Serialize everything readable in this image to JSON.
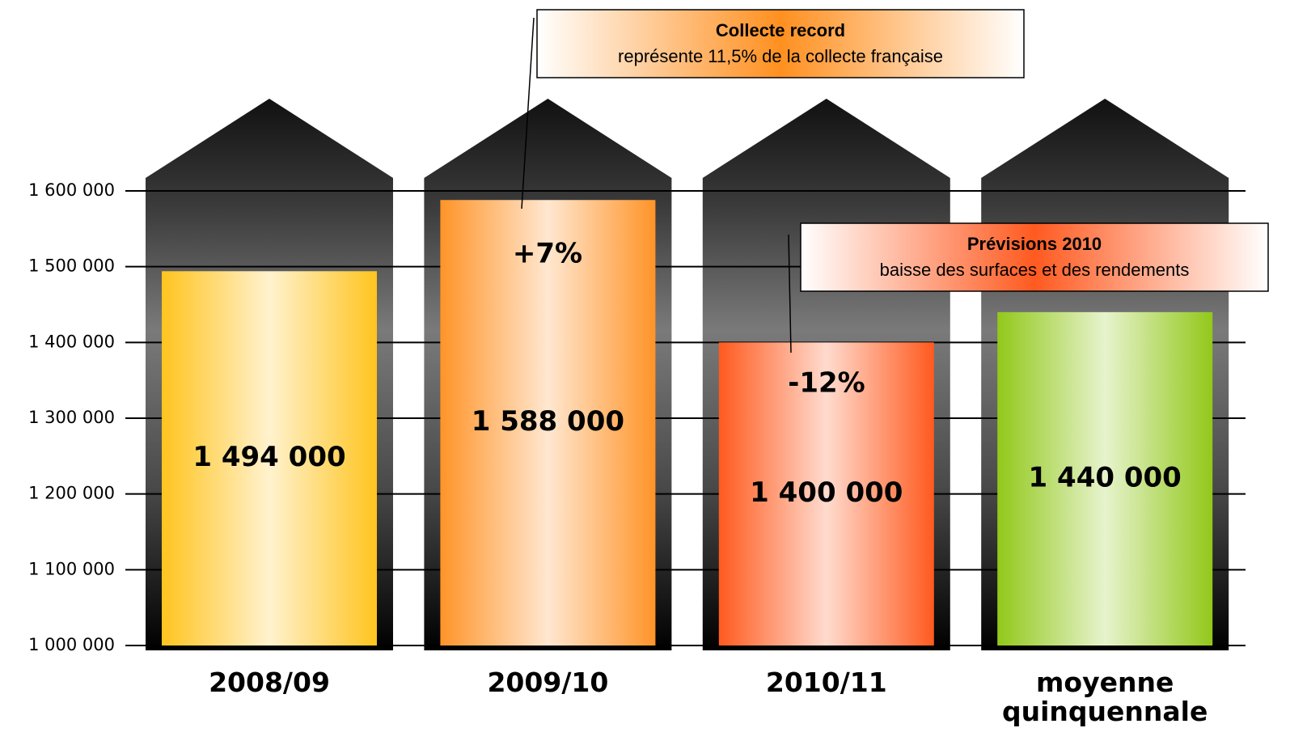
{
  "chart_data": {
    "type": "bar",
    "categories": [
      "2008/09",
      "2009/10",
      "2010/11",
      "moyenne quinquennale"
    ],
    "values": [
      1494000,
      1588000,
      1400000,
      1440000
    ],
    "value_labels": [
      "1 494 000",
      "1 588 000",
      "1 400 000",
      "1 440 000"
    ],
    "colors": [
      "#ffc41e",
      "#ff9428",
      "#ff5a1e",
      "#92c81a"
    ],
    "ylim": [
      1000000,
      1600000
    ],
    "yticks": [
      {
        "value": 1000000,
        "label": "1 000 000"
      },
      {
        "value": 1100000,
        "label": "1 100 000"
      },
      {
        "value": 1200000,
        "label": "1 200 000"
      },
      {
        "value": 1300000,
        "label": "1 300 000"
      },
      {
        "value": 1400000,
        "label": "1 400 000"
      },
      {
        "value": 1500000,
        "label": "1 500 000"
      },
      {
        "value": 1600000,
        "label": "1 600 000"
      }
    ],
    "grid": true,
    "annotations": [
      "+7%",
      "-12%"
    ],
    "callouts": [
      {
        "title": "Collecte record",
        "text": "représente 11,5% de la collecte française"
      },
      {
        "title": "Prévisions 2010",
        "text": "baisse des surfaces et des rendements"
      }
    ]
  }
}
